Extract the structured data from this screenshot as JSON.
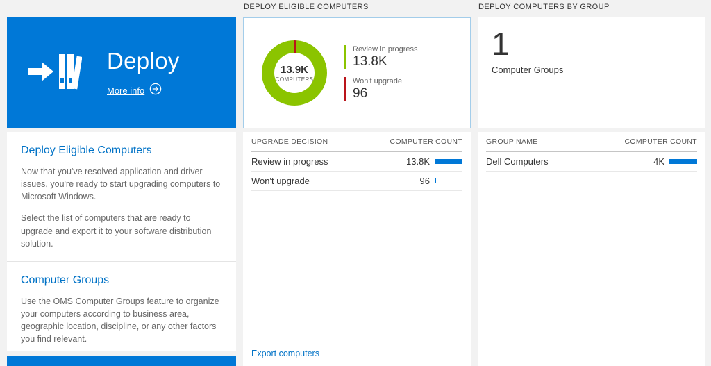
{
  "colors": {
    "accent": "#0078d7",
    "tile_blue": "#0078d7",
    "link": "#0072c6",
    "green": "#8bc400",
    "red": "#ba141a"
  },
  "left": {
    "tile": {
      "title": "Deploy",
      "more_info": "More info"
    },
    "sections": [
      {
        "heading": "Deploy Eligible Computers",
        "paragraphs": [
          "Now that you've resolved application and driver issues, you're ready to start upgrading computers to Microsoft Windows.",
          "Select the list of computers that are ready to upgrade and export it to your software distribution solution."
        ]
      },
      {
        "heading": "Computer Groups",
        "paragraphs": [
          "Use the OMS Computer Groups feature to organize your computers according to business area, geographic location, discipline, or any other factors you find relevant."
        ]
      }
    ]
  },
  "middle": {
    "header": "DEPLOY ELIGIBLE COMPUTERS",
    "donut": {
      "center_value": "13.9K",
      "center_label": "COMPUTERS"
    },
    "legend": [
      {
        "label": "Review in progress",
        "value": "13.8K",
        "color": "#8bc400"
      },
      {
        "label": "Won't upgrade",
        "value": "96",
        "color": "#ba141a"
      }
    ],
    "table": {
      "columns": [
        "UPGRADE DECISION",
        "COMPUTER COUNT"
      ],
      "max": 13800,
      "rows": [
        {
          "label": "Review in progress",
          "value": "13.8K",
          "count": 13800
        },
        {
          "label": "Won't upgrade",
          "value": "96",
          "count": 96
        }
      ]
    },
    "export_link": "Export computers"
  },
  "right": {
    "header": "DEPLOY COMPUTERS BY GROUP",
    "count": "1",
    "count_label": "Computer Groups",
    "table": {
      "columns": [
        "GROUP NAME",
        "COMPUTER COUNT"
      ],
      "max": 4000,
      "rows": [
        {
          "label": "Dell Computers",
          "value": "4K",
          "count": 4000
        }
      ]
    }
  },
  "chart_data": [
    {
      "type": "pie",
      "title": "Deploy Eligible Computers",
      "labels": [
        "Review in progress",
        "Won't upgrade"
      ],
      "values": [
        13800,
        96
      ],
      "colors": [
        "#8bc400",
        "#ba141a"
      ],
      "center_text": "13.9K COMPUTERS",
      "legend_position": "right"
    },
    {
      "type": "table",
      "columns": [
        "UPGRADE DECISION",
        "COMPUTER COUNT"
      ],
      "rows": [
        [
          "Review in progress",
          13800
        ],
        [
          "Won't upgrade",
          96
        ]
      ]
    },
    {
      "type": "table",
      "columns": [
        "GROUP NAME",
        "COMPUTER COUNT"
      ],
      "rows": [
        [
          "Dell Computers",
          4000
        ]
      ]
    }
  ]
}
